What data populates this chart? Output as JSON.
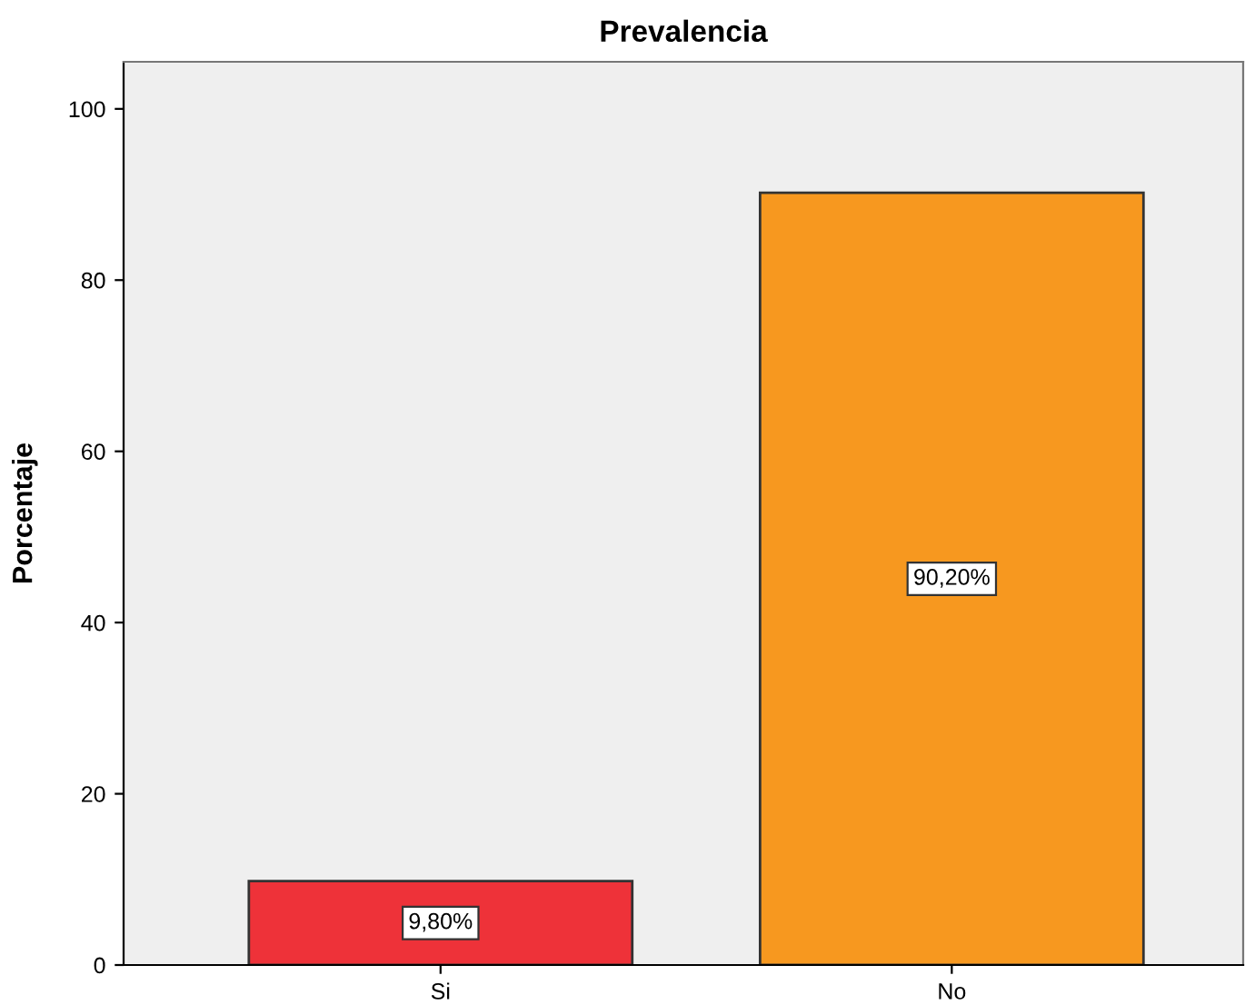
{
  "chart_data": {
    "type": "bar",
    "title": "Prevalencia",
    "ylabel": "Porcentaje",
    "categories": [
      "Si",
      "No"
    ],
    "values": [
      9.8,
      90.2
    ],
    "colors": [
      "#ee3239",
      "#f7981f"
    ],
    "value_labels": [
      "9,80%",
      "90,20%"
    ],
    "ylim": [
      0,
      105.5
    ],
    "yticks": [
      0,
      20,
      40,
      60,
      80,
      100
    ],
    "grid": false
  }
}
